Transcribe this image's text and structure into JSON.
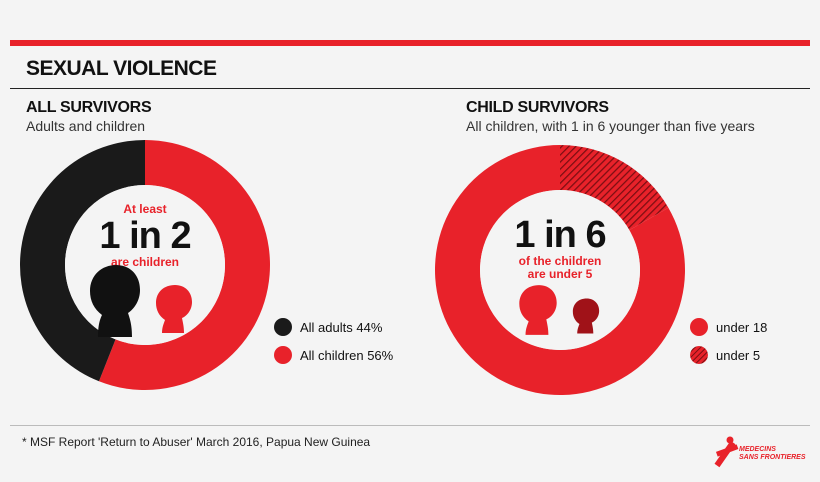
{
  "page_title": "SEXUAL VIOLENCE",
  "left": {
    "title": "ALL SURVIVORS",
    "subtitle": "Adults and children",
    "center_top": "At least",
    "center_big": "1 in 2",
    "center_bottom": "are children",
    "legend": [
      {
        "label": "All adults 44%",
        "color": "#1a1a1a"
      },
      {
        "label": "All children 56%",
        "color": "#e8222a"
      }
    ]
  },
  "right": {
    "title": "CHILD SURVIVORS",
    "subtitle": "All children, with 1 in 6 younger than five years",
    "center_big": "1 in 6",
    "center_line1": "of the children",
    "center_line2": "are under 5",
    "legend": [
      {
        "label": "under 18",
        "color": "#e8222a"
      },
      {
        "label": "under 5",
        "color": "#9b1218"
      }
    ]
  },
  "footnote": "* MSF Report 'Return to Abuser' March 2016, Papua New Guinea",
  "logo": {
    "line1": "MEDECINS",
    "line2": "SANS FRONTIERES"
  },
  "chart_data": [
    {
      "type": "pie",
      "title": "ALL SURVIVORS",
      "categories": [
        "All adults",
        "All children"
      ],
      "values": [
        44,
        56
      ],
      "colors": [
        "#1a1a1a",
        "#e8222a"
      ]
    },
    {
      "type": "pie",
      "title": "CHILD SURVIVORS",
      "categories": [
        "under 18",
        "under 5"
      ],
      "values": [
        83.3,
        16.7
      ],
      "colors": [
        "#e8222a",
        "#9b1218"
      ]
    }
  ]
}
